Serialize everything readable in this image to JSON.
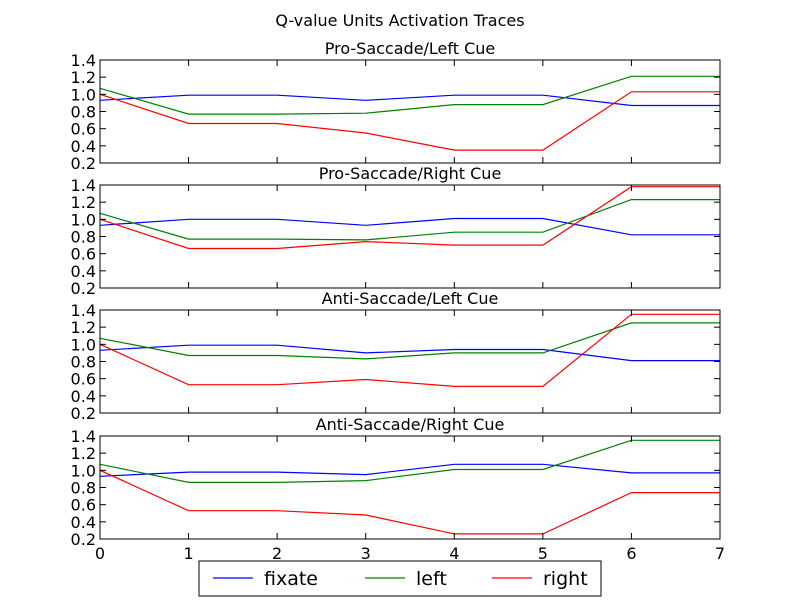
{
  "chart_data": {
    "type": "line",
    "title": "Q-value Units Activation Traces",
    "x": [
      0,
      1,
      2,
      3,
      4,
      5,
      6,
      7
    ],
    "xlim": [
      0,
      7
    ],
    "x_ticks": [
      "0",
      "1",
      "2",
      "3",
      "4",
      "5",
      "6",
      "7"
    ],
    "y_ticks": [
      "0.2",
      "0.4",
      "0.6",
      "0.8",
      "1.0",
      "1.2",
      "1.4"
    ],
    "grid": false,
    "legend": {
      "placement": "bottom-center",
      "columns": 3
    },
    "colors": {
      "fixate": "#0000ff",
      "left": "#008000",
      "right": "#ff0000"
    },
    "panels": [
      {
        "title": "Pro-Saccade/Left Cue",
        "ylim": [
          0.2,
          1.4
        ],
        "series": [
          {
            "name": "fixate",
            "values": [
              0.93,
              0.99,
              0.99,
              0.93,
              0.99,
              0.99,
              0.87,
              0.87
            ]
          },
          {
            "name": "left",
            "values": [
              1.07,
              0.77,
              0.77,
              0.78,
              0.88,
              0.88,
              1.21,
              1.21
            ]
          },
          {
            "name": "right",
            "values": [
              1.0,
              0.66,
              0.66,
              0.55,
              0.35,
              0.35,
              1.03,
              1.03
            ]
          }
        ]
      },
      {
        "title": "Pro-Saccade/Right Cue",
        "ylim": [
          0.2,
          1.4
        ],
        "series": [
          {
            "name": "fixate",
            "values": [
              0.93,
              1.0,
              1.0,
              0.93,
              1.01,
              1.01,
              0.82,
              0.82
            ]
          },
          {
            "name": "left",
            "values": [
              1.07,
              0.77,
              0.77,
              0.76,
              0.85,
              0.85,
              1.23,
              1.23
            ]
          },
          {
            "name": "right",
            "values": [
              1.0,
              0.66,
              0.66,
              0.74,
              0.7,
              0.7,
              1.38,
              1.38
            ]
          }
        ]
      },
      {
        "title": "Anti-Saccade/Left Cue",
        "ylim": [
          0.2,
          1.4
        ],
        "series": [
          {
            "name": "fixate",
            "values": [
              0.93,
              0.99,
              0.99,
              0.9,
              0.94,
              0.94,
              0.81,
              0.81
            ]
          },
          {
            "name": "left",
            "values": [
              1.07,
              0.87,
              0.87,
              0.83,
              0.9,
              0.9,
              1.25,
              1.25
            ]
          },
          {
            "name": "right",
            "values": [
              1.0,
              0.53,
              0.53,
              0.59,
              0.51,
              0.51,
              1.35,
              1.35
            ]
          }
        ]
      },
      {
        "title": "Anti-Saccade/Right Cue",
        "ylim": [
          0.2,
          1.4
        ],
        "series": [
          {
            "name": "fixate",
            "values": [
              0.93,
              0.98,
              0.98,
              0.95,
              1.07,
              1.07,
              0.97,
              0.97
            ]
          },
          {
            "name": "left",
            "values": [
              1.07,
              0.86,
              0.86,
              0.88,
              1.01,
              1.01,
              1.35,
              1.35
            ]
          },
          {
            "name": "right",
            "values": [
              1.0,
              0.53,
              0.53,
              0.48,
              0.26,
              0.26,
              0.74,
              0.74
            ]
          }
        ]
      }
    ],
    "legend_labels": [
      "fixate",
      "left",
      "right"
    ]
  }
}
